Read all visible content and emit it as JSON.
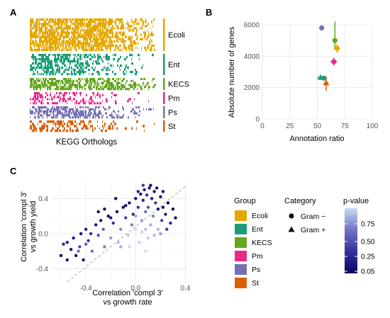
{
  "panels": {
    "a": {
      "letter": "A",
      "xlabel": "KEGG Orthologs",
      "groups": [
        {
          "name": "Ecoli",
          "color": "#E6A800"
        },
        {
          "name": "Ent",
          "color": "#1B9E77"
        },
        {
          "name": "KECS",
          "color": "#66A61E"
        },
        {
          "name": "Pm",
          "color": "#E7298A"
        },
        {
          "name": "Ps",
          "color": "#7570B3"
        },
        {
          "name": "St",
          "color": "#D95F02"
        }
      ]
    },
    "b": {
      "letter": "B",
      "xlabel": "Annotation ratio",
      "ylabel": "Absolute number of genes"
    },
    "c": {
      "letter": "C",
      "xlabel_line1": "Correlation 'compl 3'",
      "xlabel_line2": "vs growth rate",
      "ylabel_line1": "Correlation 'compl 3'",
      "ylabel_line2": "vs growth yield"
    }
  },
  "legend": {
    "group_title": "Group",
    "groups": [
      {
        "name": "Ecoli",
        "color": "#E6A800"
      },
      {
        "name": "Ent",
        "color": "#1B9E77"
      },
      {
        "name": "KECS",
        "color": "#66A61E"
      },
      {
        "name": "Pm",
        "color": "#E7298A"
      },
      {
        "name": "Ps",
        "color": "#7570B3"
      },
      {
        "name": "St",
        "color": "#D95F02"
      }
    ],
    "category_title": "Category",
    "categories": [
      {
        "name": "Gram −",
        "shape": "circle"
      },
      {
        "name": "Gram +",
        "shape": "triangle"
      }
    ],
    "pvalue_title": "p-value",
    "pvalue_ticks": [
      "0.75",
      "0.50",
      "0.25",
      "0.05"
    ],
    "pvalue_colors": {
      "high": "#C6DBEF",
      "low": "#08085E"
    }
  },
  "chart_data": [
    {
      "panel": "A",
      "type": "heatmap",
      "xlabel": "KEGG Orthologs",
      "rows": [
        "Ecoli",
        "Ent",
        "KECS",
        "Pm",
        "Ps",
        "St"
      ]
    },
    {
      "panel": "B",
      "type": "scatter",
      "xlabel": "Annotation ratio",
      "ylabel": "Absolute number of genes",
      "xlim": [
        0,
        100
      ],
      "ylim": [
        0,
        6000
      ],
      "xticks": [
        0,
        25,
        50,
        75,
        100
      ],
      "yticks": [
        0,
        2000,
        4000,
        6000
      ],
      "series": [
        {
          "name": "Ps",
          "x": 54,
          "y": 5800,
          "shape": "circle",
          "xerr": [
            53,
            55
          ],
          "yerr": [
            5700,
            5900
          ]
        },
        {
          "name": "KECS",
          "x": 66,
          "y": 5000,
          "shape": "circle",
          "xerr": [
            64,
            68
          ],
          "yerr": [
            4400,
            6200
          ]
        },
        {
          "name": "Ecoli",
          "x": 68,
          "y": 4500,
          "shape": "circle",
          "xerr": [
            65,
            71
          ],
          "yerr": [
            4200,
            4800
          ]
        },
        {
          "name": "Pm",
          "x": 65,
          "y": 3650,
          "shape": "circle",
          "xerr": [
            62,
            68
          ],
          "yerr": [
            3400,
            3900
          ]
        },
        {
          "name": "Ent",
          "x": 53,
          "y": 2650,
          "shape": "triangle",
          "xerr": [
            50,
            56
          ],
          "yerr": [
            2500,
            2800
          ]
        },
        {
          "name": "Ent",
          "x": 56,
          "y": 2600,
          "shape": "circle",
          "xerr": [
            53,
            59
          ],
          "yerr": [
            2450,
            2750
          ]
        },
        {
          "name": "St",
          "x": 58,
          "y": 2300,
          "shape": "triangle",
          "xerr": [
            56,
            60
          ],
          "yerr": [
            1800,
            2700
          ]
        }
      ]
    },
    {
      "panel": "C",
      "type": "scatter",
      "xlabel": "Correlation 'compl 3' vs growth rate",
      "ylabel": "Correlation 'compl 3' vs growth yield",
      "xlim": [
        -0.68,
        0.42
      ],
      "ylim": [
        -0.55,
        0.58
      ],
      "xticks": [
        "-0.4",
        "0.0",
        "0.4"
      ],
      "yticks": [
        "-0.4",
        "0.0",
        "0.4"
      ],
      "diagonal": "y = x (dashed)",
      "color_scale": "p-value",
      "points": [
        [
          -0.58,
          -0.12,
          0.3
        ],
        [
          -0.52,
          -0.18,
          0.15
        ],
        [
          -0.55,
          -0.1,
          0.25
        ],
        [
          -0.48,
          -0.25,
          0.08
        ],
        [
          -0.45,
          -0.15,
          0.4
        ],
        [
          -0.5,
          -0.05,
          0.2
        ],
        [
          -0.42,
          -0.3,
          0.06
        ],
        [
          -0.38,
          -0.08,
          0.35
        ],
        [
          -0.4,
          0.05,
          0.18
        ],
        [
          -0.35,
          -0.2,
          0.55
        ],
        [
          -0.32,
          0.1,
          0.12
        ],
        [
          -0.3,
          -0.02,
          0.45
        ],
        [
          -0.28,
          0.15,
          0.1
        ],
        [
          -0.25,
          -0.15,
          0.6
        ],
        [
          -0.26,
          0.05,
          0.5
        ],
        [
          -0.22,
          0.2,
          0.08
        ],
        [
          -0.2,
          -0.05,
          0.7
        ],
        [
          -0.18,
          0.12,
          0.3
        ],
        [
          -0.15,
          0.25,
          0.06
        ],
        [
          -0.14,
          -0.1,
          0.8
        ],
        [
          -0.12,
          0.05,
          0.65
        ],
        [
          -0.1,
          0.3,
          0.05
        ],
        [
          -0.08,
          0.18,
          0.4
        ],
        [
          -0.06,
          -0.02,
          0.85
        ],
        [
          -0.05,
          0.35,
          0.08
        ],
        [
          -0.03,
          0.1,
          0.6
        ],
        [
          -0.02,
          0.22,
          0.3
        ],
        [
          0.0,
          0.4,
          0.1
        ],
        [
          0.0,
          0.05,
          0.9
        ],
        [
          0.02,
          0.3,
          0.35
        ],
        [
          0.03,
          -0.1,
          0.88
        ],
        [
          0.04,
          0.45,
          0.12
        ],
        [
          0.05,
          0.15,
          0.7
        ],
        [
          0.06,
          0.38,
          0.25
        ],
        [
          0.07,
          0.5,
          0.15
        ],
        [
          0.08,
          0.25,
          0.55
        ],
        [
          0.08,
          0.05,
          0.82
        ],
        [
          0.09,
          0.44,
          0.3
        ],
        [
          0.1,
          0.3,
          0.45
        ],
        [
          0.11,
          0.52,
          0.18
        ],
        [
          0.12,
          0.1,
          0.75
        ],
        [
          0.13,
          0.4,
          0.2
        ],
        [
          0.14,
          0.2,
          0.6
        ],
        [
          0.15,
          0.48,
          0.12
        ],
        [
          0.16,
          0.35,
          0.35
        ],
        [
          0.18,
          0.05,
          0.8
        ],
        [
          0.18,
          0.28,
          0.15
        ],
        [
          0.2,
          0.42,
          0.1
        ],
        [
          0.21,
          0.15,
          0.4
        ],
        [
          0.22,
          0.3,
          0.08
        ],
        [
          0.24,
          0.22,
          0.2
        ],
        [
          0.26,
          0.35,
          0.06
        ],
        [
          0.28,
          0.12,
          0.25
        ],
        [
          0.3,
          0.28,
          0.05
        ],
        [
          0.32,
          0.18,
          0.1
        ],
        [
          -0.6,
          -0.25,
          0.05
        ],
        [
          -0.55,
          -0.3,
          0.1
        ],
        [
          -0.36,
          0.0,
          0.28
        ],
        [
          -0.44,
          0.0,
          0.12
        ],
        [
          -0.46,
          -0.2,
          0.55
        ],
        [
          -0.25,
          0.28,
          0.07
        ],
        [
          -0.2,
          0.18,
          0.15
        ],
        [
          0.05,
          0.02,
          0.9
        ],
        [
          0.1,
          -0.05,
          0.85
        ],
        [
          0.15,
          -0.02,
          0.8
        ],
        [
          0.0,
          0.2,
          0.75
        ],
        [
          -0.08,
          0.32,
          0.1
        ],
        [
          0.02,
          0.48,
          0.22
        ],
        [
          0.12,
          0.55,
          0.1
        ],
        [
          0.06,
          0.55,
          0.35
        ],
        [
          -0.3,
          0.25,
          0.05
        ],
        [
          -0.12,
          -0.15,
          0.75
        ],
        [
          -0.4,
          -0.12,
          0.5
        ],
        [
          0.2,
          0.0,
          0.7
        ],
        [
          0.25,
          0.05,
          0.35
        ],
        [
          -0.05,
          -0.15,
          0.95
        ],
        [
          0.08,
          -0.2,
          0.92
        ],
        [
          -0.16,
          0.4,
          0.06
        ],
        [
          0.17,
          0.52,
          0.08
        ],
        [
          0.22,
          0.48,
          0.05
        ]
      ]
    }
  ]
}
